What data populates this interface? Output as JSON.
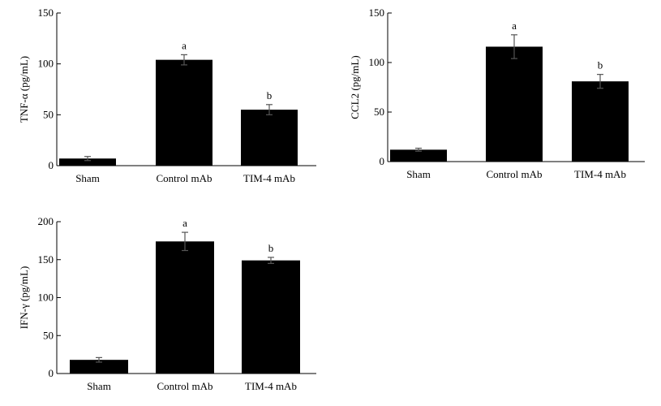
{
  "chart_data": [
    {
      "type": "bar",
      "categories": [
        "Sham",
        "Control mAb",
        "TIM-4 mAb"
      ],
      "values": [
        7,
        104,
        55
      ],
      "errors": [
        2,
        5,
        5
      ],
      "sig_labels": [
        "",
        "a",
        "b"
      ],
      "ylabel": "TNF-α (pg/mL)",
      "ylim": [
        0,
        150
      ],
      "yticks": [
        0,
        50,
        100,
        150
      ],
      "xlabel": "",
      "title": "",
      "grid": false,
      "color": "#000000"
    },
    {
      "type": "bar",
      "categories": [
        "Sham",
        "Control mAb",
        "TIM-4 mAb"
      ],
      "values": [
        12,
        116,
        81
      ],
      "errors": [
        1.5,
        12,
        7
      ],
      "sig_labels": [
        "",
        "a",
        "b"
      ],
      "ylabel": "CCL2 (pg/mL)",
      "ylim": [
        0,
        150
      ],
      "yticks": [
        0,
        50,
        100,
        150
      ],
      "xlabel": "",
      "title": "",
      "grid": false,
      "color": "#000000"
    },
    {
      "type": "bar",
      "categories": [
        "Sham",
        "Control mAb",
        "TIM-4 mAb"
      ],
      "values": [
        18,
        174,
        149
      ],
      "errors": [
        3,
        12,
        4
      ],
      "sig_labels": [
        "",
        "a",
        "b"
      ],
      "ylabel": "IFN-γ (pg/mL)",
      "ylim": [
        0,
        200
      ],
      "yticks": [
        0,
        50,
        100,
        150,
        200
      ],
      "xlabel": "",
      "title": "",
      "grid": false,
      "color": "#000000"
    }
  ]
}
